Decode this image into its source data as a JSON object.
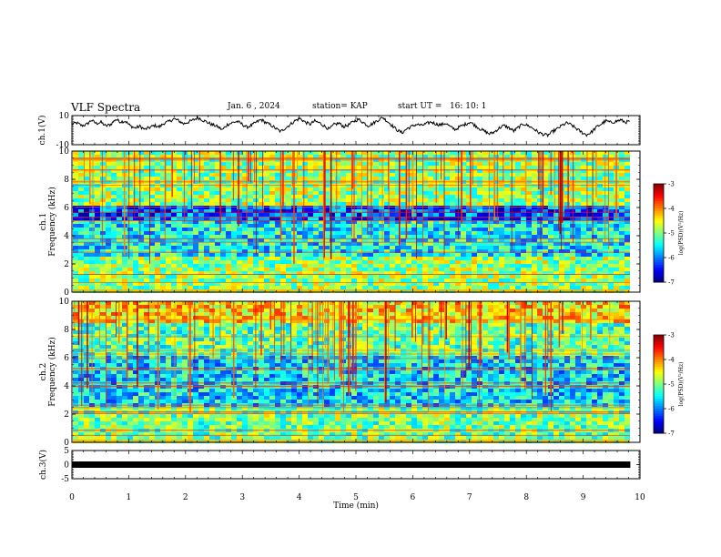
{
  "header": {
    "title": "VLF Spectra",
    "date": "Jan. 6 , 2024",
    "station": "station= KAP",
    "start": "start UT =   16: 10: 1"
  },
  "chart_data": [
    {
      "type": "line",
      "name": "ch1",
      "ylabel": "ch.1(V)",
      "ylim": [
        -10,
        10
      ],
      "yticks": [
        "10",
        "-10"
      ],
      "xlim": [
        0,
        9.83
      ],
      "samples": [
        4.2,
        5.0,
        3.1,
        3.8,
        6.9,
        4.6,
        5.4,
        2.8,
        4.0,
        7.4,
        5.8,
        6.2,
        3.0,
        1.5,
        2.6,
        0.5,
        1.8,
        3.2,
        2.2,
        4.8,
        5.9,
        7.8,
        6.5,
        4.4,
        5.6,
        7.0,
        8.6,
        6.8,
        5.2,
        3.6,
        2.4,
        0.2,
        3.8,
        5.1,
        6.0,
        4.2,
        2.0,
        3.3,
        5.5,
        7.2,
        5.0,
        3.4,
        1.1,
        -1.0,
        1.6,
        4.0,
        6.6,
        8.0,
        5.6,
        4.0,
        6.2,
        5.0,
        2.8,
        0.6,
        3.8,
        4.8,
        2.4,
        3.6,
        6.0,
        7.4,
        5.3,
        3.0,
        4.6,
        6.8,
        8.8,
        6.0,
        3.0,
        0.0,
        -1.8,
        1.0,
        2.6,
        4.0,
        3.2,
        4.4,
        5.6,
        4.2,
        3.6,
        4.8,
        2.0,
        0.4,
        2.6,
        4.0,
        5.6,
        3.3,
        1.0,
        -0.8,
        -2.6,
        -1.2,
        1.4,
        3.2,
        1.6,
        -0.6,
        2.0,
        4.4,
        3.0,
        1.2,
        -1.4,
        -2.8,
        -3.6,
        -1.0,
        1.0,
        3.4,
        5.0,
        3.2,
        0.8,
        -1.6,
        -3.2,
        -1.4,
        2.0,
        4.2,
        6.4,
        5.2,
        6.0,
        7.0,
        5.4,
        6.2
      ]
    },
    {
      "type": "heatmap",
      "name": "ch2",
      "ylabel": "ch.1\nFrequency (kHz)",
      "ylim": [
        0,
        10
      ],
      "yticks": [
        "0",
        "2",
        "4",
        "6",
        "8",
        "10"
      ],
      "colorbar": {
        "label": "log(PSD)(V²/Hz)",
        "range": [
          -7,
          -3
        ],
        "ticks": [
          "-3",
          "-4",
          "-5",
          "-6",
          "-7"
        ]
      }
    },
    {
      "type": "heatmap",
      "name": "ch3",
      "ylabel": "ch.2\nFrequency (kHz)",
      "ylim": [
        0,
        10
      ],
      "yticks": [
        "0",
        "2",
        "4",
        "6",
        "8",
        "10"
      ],
      "colorbar": {
        "label": "log(PSD)(V²/Hz)",
        "range": [
          -7,
          -3
        ],
        "ticks": [
          "-3",
          "-4",
          "-5",
          "-6",
          "-7"
        ]
      }
    },
    {
      "type": "line",
      "name": "ch3v",
      "ylabel": "ch.3(V)",
      "ylim": [
        -5,
        5
      ],
      "yticks": [
        "5",
        "0",
        "-5"
      ],
      "value": 0,
      "xlabel": "Time (min)",
      "xlim": [
        0,
        10
      ],
      "xticks": [
        "0",
        "1",
        "2",
        "3",
        "4",
        "5",
        "6",
        "7",
        "8",
        "9",
        "10"
      ]
    }
  ]
}
